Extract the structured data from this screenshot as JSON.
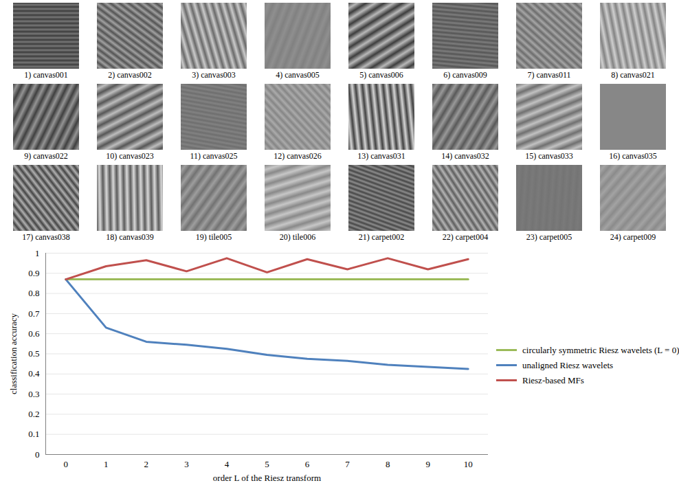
{
  "images": {
    "captions": [
      "1) canvas001",
      "2) canvas002",
      "3) canvas003",
      "4) canvas005",
      "5) canvas006",
      "6) canvas009",
      "7) canvas011",
      "8) canvas021",
      "9) canvas022",
      "10) canvas023",
      "11) canvas025",
      "12) canvas026",
      "13) canvas031",
      "14) canvas032",
      "15) canvas033",
      "16) canvas035",
      "17) canvas038",
      "18) canvas039",
      "19) tile005",
      "20) tile006",
      "21) carpet002",
      "22) carpet004",
      "23) carpet005",
      "24) carpet009"
    ]
  },
  "chart_data": {
    "type": "line",
    "x_label": "order L of the Riesz transform",
    "y_label": "classification accuracy",
    "x": [
      0,
      1,
      2,
      3,
      4,
      5,
      6,
      7,
      8,
      9,
      10
    ],
    "series": [
      {
        "name": "circularly symmetric Riesz wavelets (L = 0)",
        "color": "#9bbb59",
        "values": [
          0.87,
          0.87,
          0.87,
          0.87,
          0.87,
          0.87,
          0.87,
          0.87,
          0.87,
          0.87,
          0.87
        ]
      },
      {
        "name": "unaligned Riesz wavelets",
        "color": "#4f81bd",
        "values": [
          0.87,
          0.63,
          0.56,
          0.545,
          0.525,
          0.495,
          0.475,
          0.465,
          0.445,
          0.435,
          0.425
        ]
      },
      {
        "name": "Riesz-based MFs",
        "color": "#c0504d",
        "values": [
          0.87,
          0.935,
          0.965,
          0.91,
          0.975,
          0.905,
          0.97,
          0.92,
          0.975,
          0.92,
          0.97
        ]
      }
    ],
    "xlim": [
      -0.5,
      10.5
    ],
    "xticks": [
      0,
      1,
      2,
      3,
      4,
      5,
      6,
      7,
      8,
      9,
      10
    ],
    "ylim": [
      0,
      1
    ],
    "yticks": [
      0,
      0.1,
      0.2,
      0.3,
      0.4,
      0.5,
      0.6,
      0.7,
      0.8,
      0.9,
      1
    ],
    "grid": true,
    "legend": "right"
  }
}
